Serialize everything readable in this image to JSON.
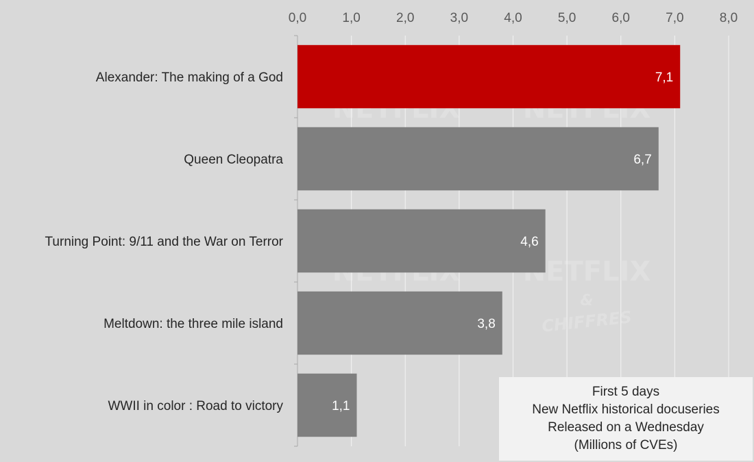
{
  "chart_data": {
    "type": "bar",
    "orientation": "horizontal",
    "categories": [
      "Alexander: The making of a God",
      "Queen Cleopatra",
      "Turning Point: 9/11 and the War on Terror",
      "Meltdown: the three mile island",
      "WWII in color : Road to victory"
    ],
    "values": [
      7.1,
      6.7,
      4.6,
      3.8,
      1.1
    ],
    "value_labels": [
      "7,1",
      "6,7",
      "4,6",
      "3,8",
      "1,1"
    ],
    "bar_colors": [
      "#c00000",
      "#7f7f7f",
      "#7f7f7f",
      "#7f7f7f",
      "#7f7f7f"
    ],
    "xlim": [
      0,
      8
    ],
    "x_ticks": [
      0,
      1,
      2,
      3,
      4,
      5,
      6,
      7,
      8
    ],
    "x_tick_labels": [
      "0,0",
      "1,0",
      "2,0",
      "3,0",
      "4,0",
      "5,0",
      "6,0",
      "7,0",
      "8,0"
    ],
    "x_axis_position": "top",
    "grid": true,
    "title": "",
    "xlabel": "",
    "ylabel": ""
  },
  "annotation": {
    "lines": [
      "First 5 days",
      "New Netflix historical docuseries",
      "Released on a Wednesday",
      "(Millions of CVEs)"
    ]
  },
  "watermark": {
    "lines": [
      "NETFLIX",
      "&",
      "CHIFFRES"
    ]
  },
  "colors": {
    "background": "#d9d9d9",
    "highlight": "#c00000",
    "bar": "#7f7f7f",
    "grid": "#f0f0f0",
    "annotation_bg": "#f2f2f2"
  }
}
